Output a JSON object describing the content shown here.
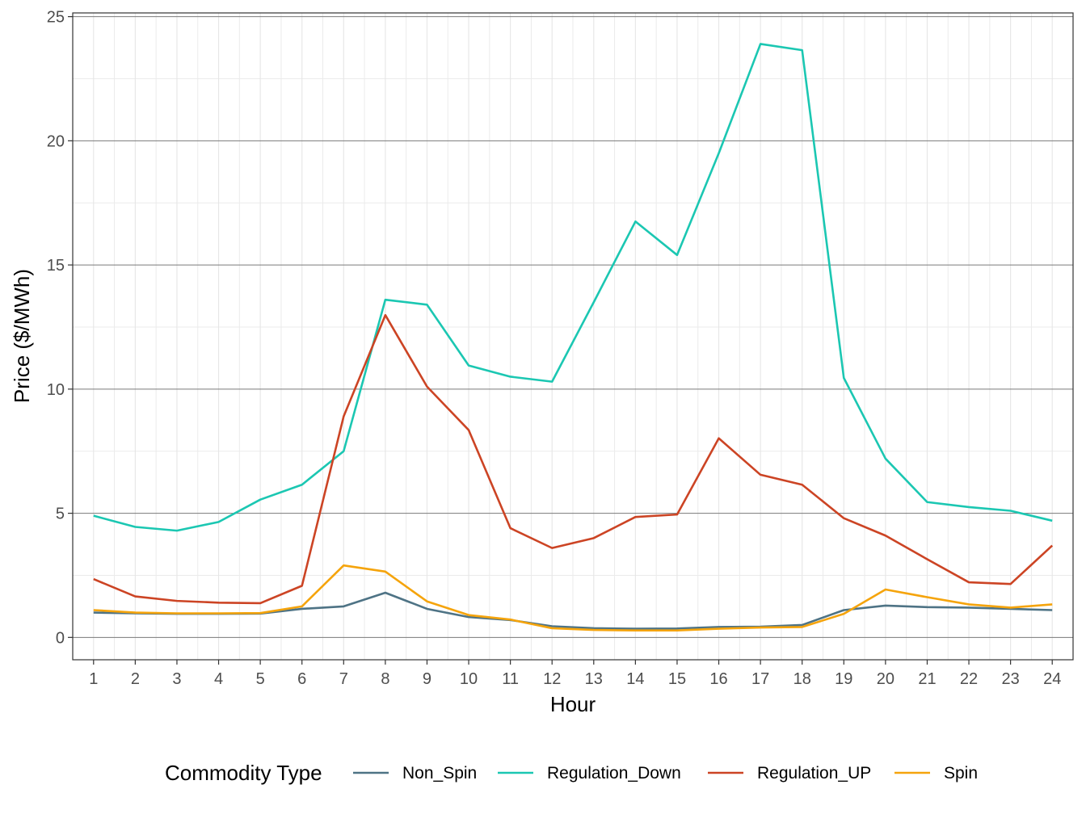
{
  "chart_data": {
    "type": "line",
    "title": "",
    "xlabel": "Hour",
    "ylabel": "Price ($/MWh)",
    "x": [
      1,
      2,
      3,
      4,
      5,
      6,
      7,
      8,
      9,
      10,
      11,
      12,
      13,
      14,
      15,
      16,
      17,
      18,
      19,
      20,
      21,
      22,
      23,
      24
    ],
    "x_ticks": [
      "1",
      "2",
      "3",
      "4",
      "5",
      "6",
      "7",
      "8",
      "9",
      "10",
      "11",
      "12",
      "13",
      "14",
      "15",
      "16",
      "17",
      "18",
      "19",
      "20",
      "21",
      "22",
      "23",
      "24"
    ],
    "xlim": [
      0.5,
      24.5
    ],
    "ylim": [
      -0.9,
      25.15
    ],
    "y_ticks": [
      0,
      5,
      10,
      15,
      20,
      25
    ],
    "y_tick_labels": [
      "0",
      "5",
      "10",
      "15",
      "20",
      "25"
    ],
    "grid": true,
    "legend": {
      "title": "Commodity Type",
      "position": "bottom"
    },
    "series": [
      {
        "name": "Non_Spin",
        "color": "#4E7385",
        "values": [
          1.0,
          0.97,
          0.95,
          0.95,
          0.96,
          1.15,
          1.25,
          1.8,
          1.15,
          0.82,
          0.7,
          0.45,
          0.37,
          0.35,
          0.36,
          0.42,
          0.43,
          0.5,
          1.1,
          1.28,
          1.22,
          1.2,
          1.15,
          1.1
        ]
      },
      {
        "name": "Regulation_Down",
        "color": "#1BC7B2",
        "values": [
          4.9,
          4.45,
          4.3,
          4.65,
          5.55,
          6.15,
          7.5,
          13.6,
          13.4,
          10.95,
          10.5,
          10.3,
          13.5,
          16.75,
          15.4,
          19.5,
          23.9,
          23.65,
          10.45,
          7.2,
          5.45,
          5.25,
          5.1,
          4.7
        ]
      },
      {
        "name": "Regulation_UP",
        "color": "#CC4424",
        "values": [
          2.35,
          1.65,
          1.47,
          1.4,
          1.38,
          2.08,
          8.9,
          12.98,
          10.1,
          8.35,
          4.4,
          3.6,
          4.0,
          4.85,
          4.95,
          8.02,
          6.55,
          6.15,
          4.8,
          4.1,
          3.15,
          2.22,
          2.15,
          3.7
        ]
      },
      {
        "name": "Spin",
        "color": "#F5A40C",
        "values": [
          1.1,
          1.0,
          0.97,
          0.97,
          0.98,
          1.25,
          2.9,
          2.65,
          1.45,
          0.9,
          0.72,
          0.37,
          0.3,
          0.28,
          0.28,
          0.35,
          0.4,
          0.42,
          0.95,
          1.93,
          1.62,
          1.33,
          1.2,
          1.33
        ]
      }
    ]
  }
}
